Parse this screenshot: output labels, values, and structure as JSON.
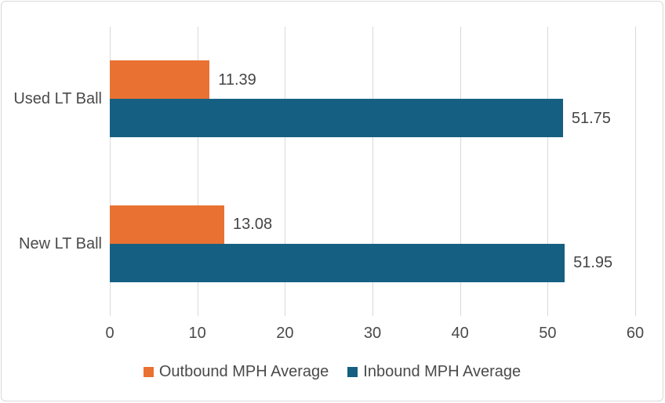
{
  "chart_data": {
    "type": "bar",
    "orientation": "horizontal",
    "title": "",
    "xlabel": "",
    "ylabel": "",
    "categories": [
      "Used LT Ball",
      "New LT Ball"
    ],
    "series": [
      {
        "name": "Outbound MPH Average",
        "color": "#E97132",
        "values": [
          11.39,
          13.08
        ],
        "labels": [
          "11.39",
          "13.08"
        ]
      },
      {
        "name": "Inbound MPH Average",
        "color": "#156082",
        "values": [
          51.75,
          51.95
        ],
        "labels": [
          "51.75",
          "51.95"
        ]
      }
    ],
    "x_axis": {
      "min": 0,
      "max": 60,
      "tick_interval": 10,
      "tick_labels": [
        "0",
        "10",
        "20",
        "30",
        "40",
        "50",
        "60"
      ]
    },
    "legend": {
      "position": "bottom",
      "entries": [
        "Outbound MPH Average",
        "Inbound MPH Average"
      ]
    },
    "grid": "vertical-gridlines-on",
    "colors": {
      "gridline": "#D9D9D9",
      "frame_border": "#D9D9D9",
      "background": "#FFFFFF",
      "text": "#4A4A4A"
    }
  }
}
